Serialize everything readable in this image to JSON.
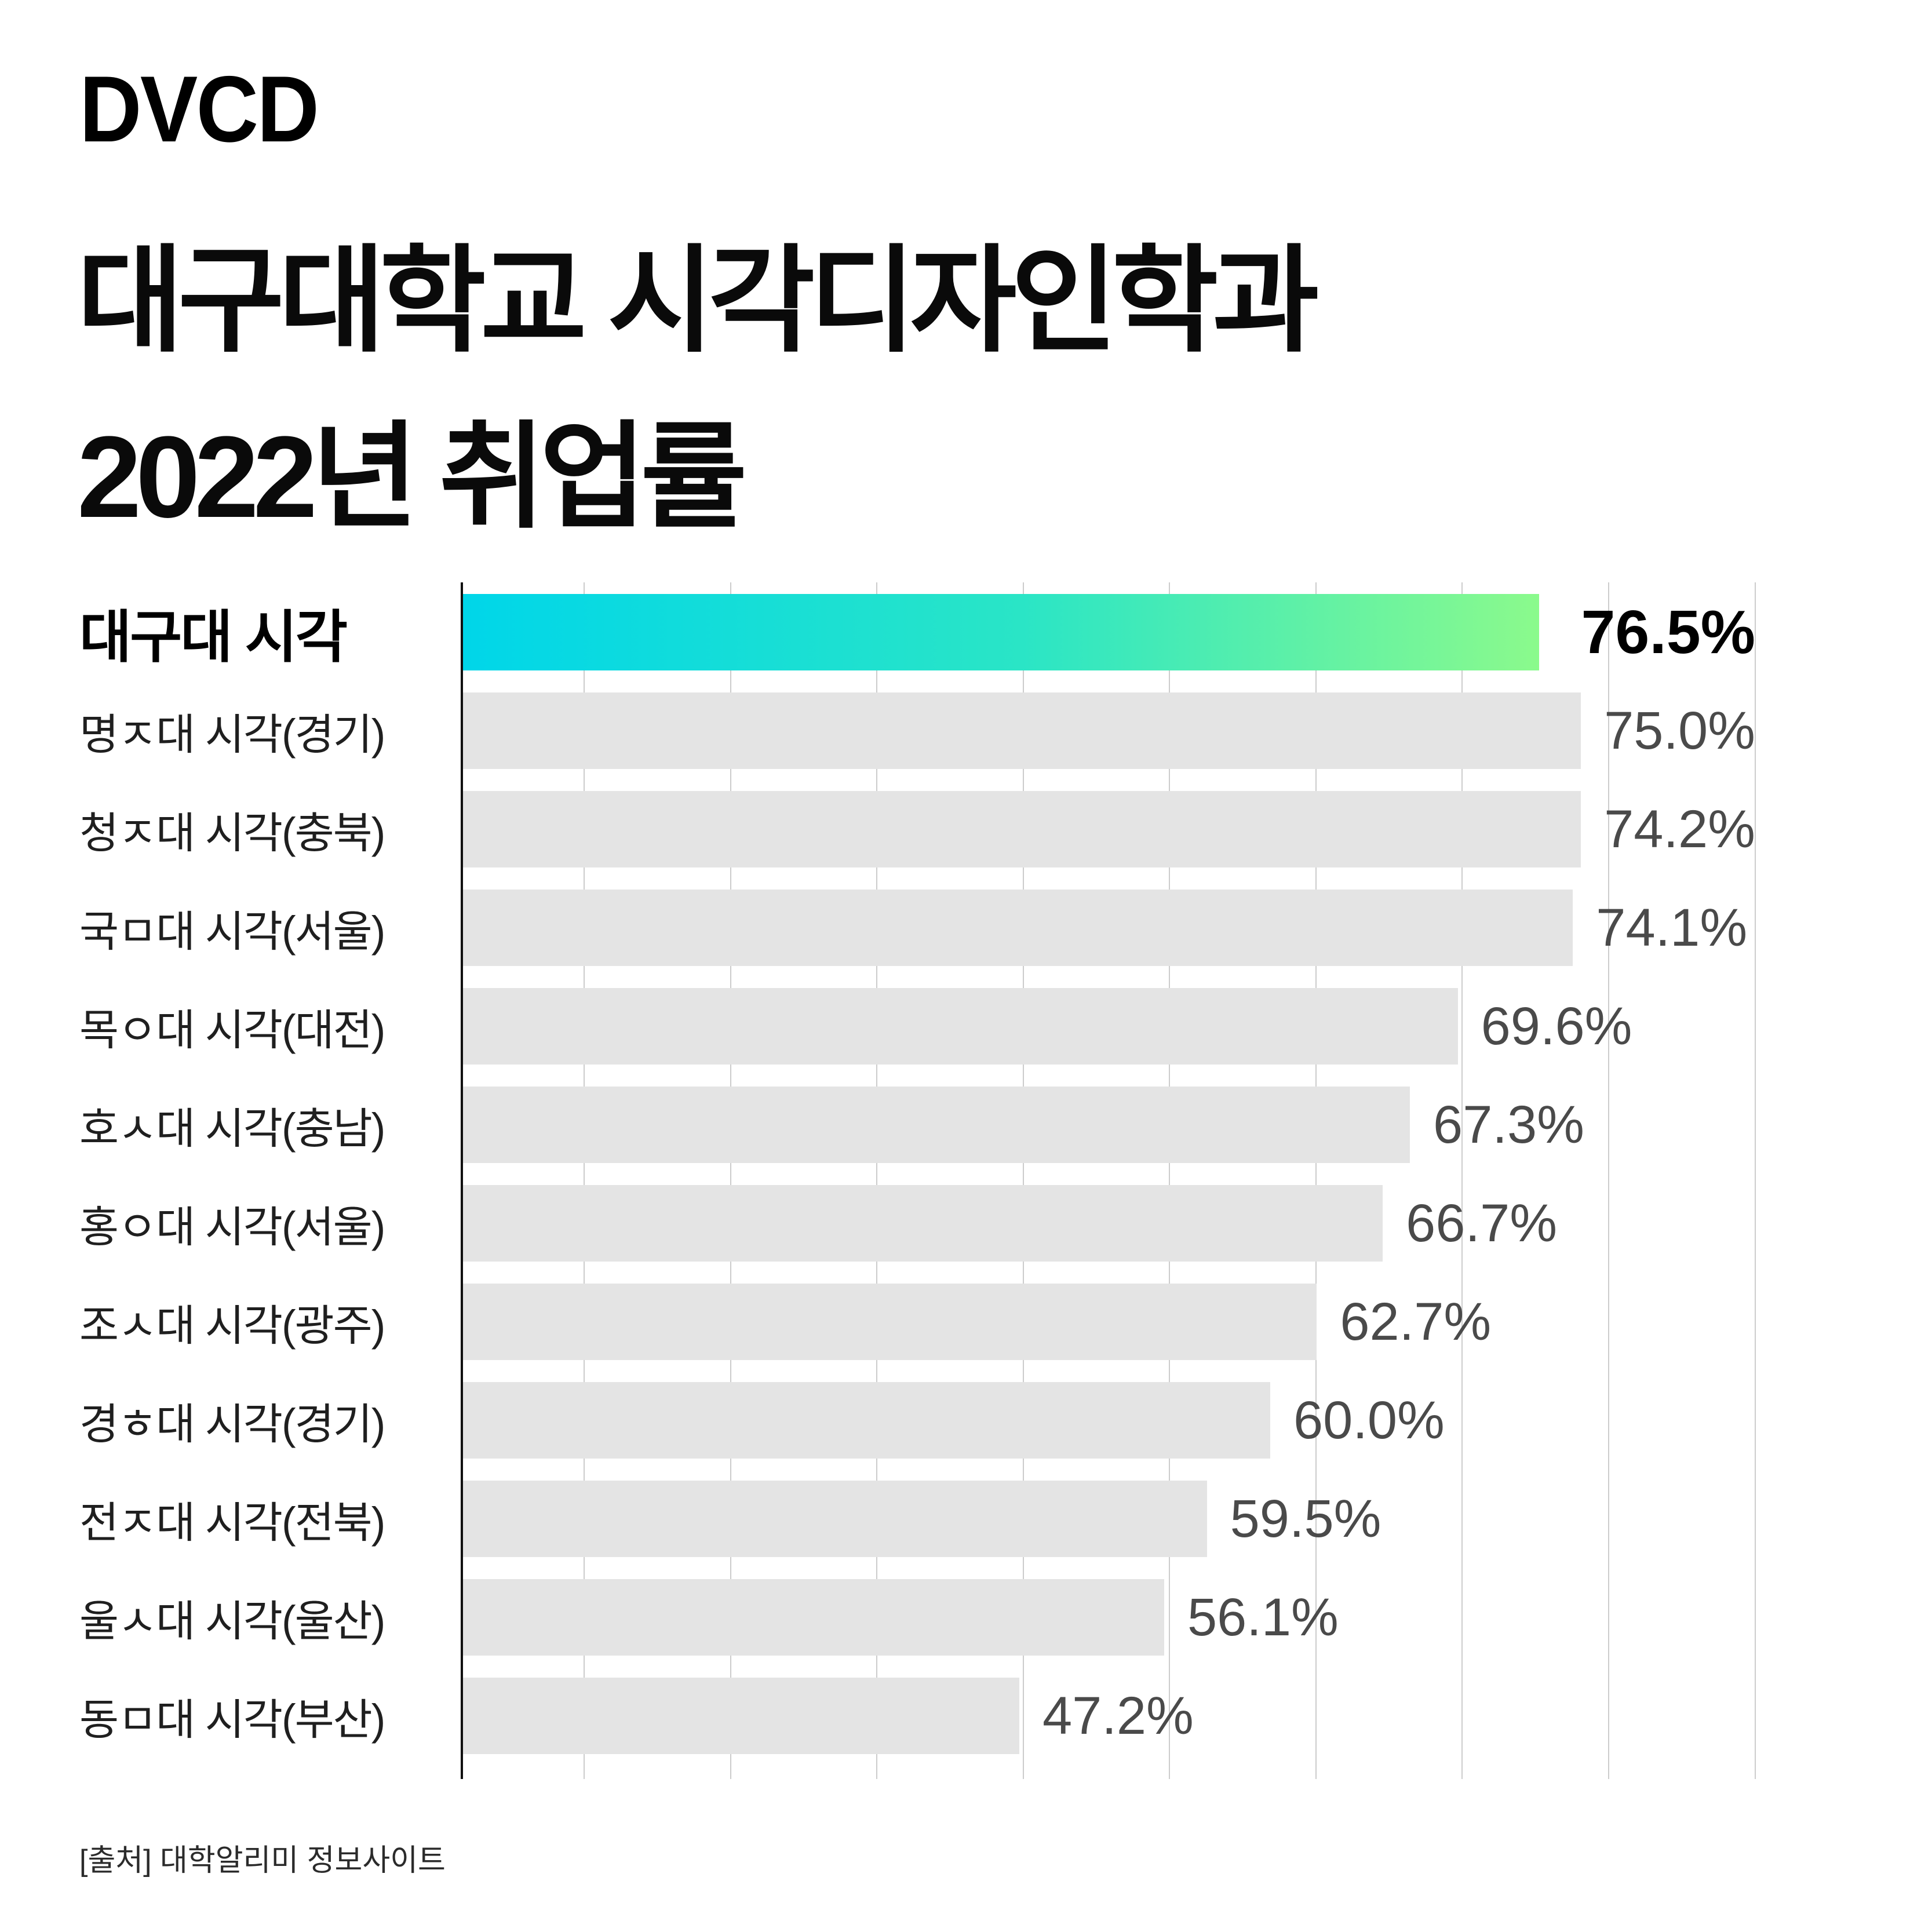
{
  "header": {
    "logo": "DVCD",
    "title_line1": "대구대학교 시각디자인학과",
    "title_line2": "2022년 취업률"
  },
  "footer": {
    "source": "[출처] 대학알리미 정보사이트"
  },
  "colors": {
    "background": "#ffffff",
    "gradient_start": "#00d6e9",
    "gradient_mid": "#2ae5c6",
    "gradient_end": "#8bfa8c",
    "bar_gray": "#e4e4e4",
    "gridline": "#cccccc",
    "axis": "#111111",
    "title_text": "#0a0a0a",
    "label_text": "#1f1f1f",
    "value_text": "#4a4a4a",
    "highlight_text": "#000000"
  },
  "chart_data": {
    "type": "bar",
    "orientation": "horizontal",
    "title": "대구대학교 시각디자인학과 2022년 취업률",
    "unit": "%",
    "grid": "vertical",
    "legend": null,
    "highlight_index": 0,
    "categories": [
      "대구대 시각",
      "명ㅈ대 시각(경기)",
      "청ㅈ대 시각(충북)",
      "국ㅁ대 시각(서울)",
      "목ㅇ대 시각(대전)",
      "호ㅅ대 시각(충남)",
      "홍ㅇ대 시각(서울)",
      "조ㅅ대 시각(광주)",
      "경ㅎ대 시각(경기)",
      "전ㅈ대 시각(전북)",
      "울ㅅ대 시각(울산)",
      "동ㅁ대 시각(부산)"
    ],
    "values": [
      76.5,
      75.0,
      74.2,
      74.1,
      69.6,
      67.3,
      66.7,
      62.7,
      60.0,
      59.5,
      56.1,
      47.2
    ],
    "value_labels": [
      "76.5%",
      "75.0%",
      "74.2%",
      "74.1%",
      "69.6%",
      "67.3%",
      "66.7%",
      "62.7%",
      "60.0%",
      "59.5%",
      "56.1%",
      "47.2%"
    ],
    "bar_width_pct": [
      91.3,
      88.7,
      87.5,
      85.9,
      77.0,
      73.3,
      71.2,
      66.1,
      62.5,
      57.6,
      54.3,
      43.1
    ],
    "gridline_pct": [
      9.45,
      20.77,
      32.08,
      43.4,
      54.72,
      66.04,
      77.35,
      88.67,
      100
    ]
  }
}
